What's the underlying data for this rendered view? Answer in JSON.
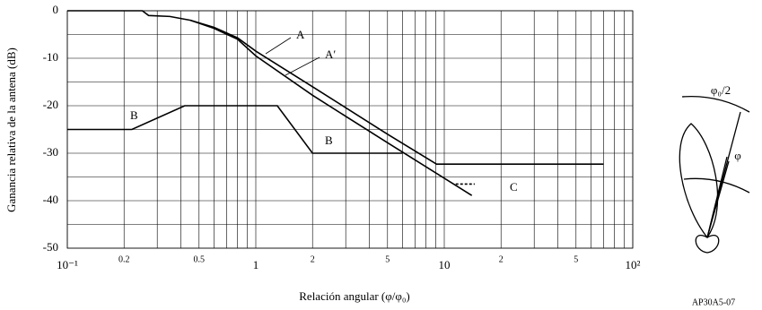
{
  "chart_data": {
    "type": "line",
    "x_label": "Relación angular (φ/φ₀)",
    "y_label": "Ganancia relativa de la antena (dB)",
    "log_x": true,
    "grid": true,
    "xlim": [
      0.1,
      100
    ],
    "ylim": [
      -50,
      0
    ],
    "xticks": [
      {
        "value": 0.1,
        "label": "10⁻¹"
      },
      0.2,
      0.5,
      1,
      {
        "value": 2,
        "label": "2"
      },
      {
        "value": 5,
        "label": "5"
      },
      10,
      {
        "value": 20,
        "label": "2"
      },
      {
        "value": 50,
        "label": "5"
      },
      {
        "value": 100,
        "label": "10²"
      }
    ],
    "xminorticks": [
      0.3,
      0.4,
      0.6,
      0.7,
      0.8,
      0.9,
      3,
      4,
      6,
      7,
      8,
      9,
      30,
      40,
      60,
      70,
      80,
      90
    ],
    "yticks": [
      -50,
      -40,
      -30,
      -20,
      -10,
      0
    ],
    "yminorticks": [
      -45,
      -35,
      -25,
      -15,
      -5
    ],
    "series": [
      {
        "name": "A",
        "color": "#000000",
        "x": [
          0.1,
          0.25,
          0.27,
          0.35,
          0.45,
          0.6,
          0.8,
          1,
          2,
          5,
          9.1,
          70
        ],
        "values": [
          0,
          0,
          -1,
          -1.2,
          -2,
          -3.5,
          -5.7,
          -8.5,
          -16,
          -26,
          -32.3,
          -32.3
        ]
      },
      {
        "name": "A′",
        "color": "#000000",
        "x": [
          0.45,
          0.6,
          0.8,
          1,
          2,
          5,
          14
        ],
        "values": [
          -2,
          -3.7,
          -6,
          -9.5,
          -17.8,
          -27.8,
          -38.9
        ]
      },
      {
        "name": "B",
        "color": "#000000",
        "x": [
          0.1,
          0.22,
          0.42,
          1.3,
          2,
          6
        ],
        "values": [
          -25,
          -25,
          -20,
          -20,
          -30,
          -30
        ]
      },
      {
        "name": "C",
        "color": "#000000",
        "dashed": true,
        "x": [
          11.5,
          14.5
        ],
        "values": [
          -36.5,
          -36.5
        ]
      }
    ],
    "annotations": [
      "B"
    ],
    "diagram": {
      "half_angle": "φ₀/2",
      "angle": "φ",
      "code": "AP30A5-07"
    }
  }
}
